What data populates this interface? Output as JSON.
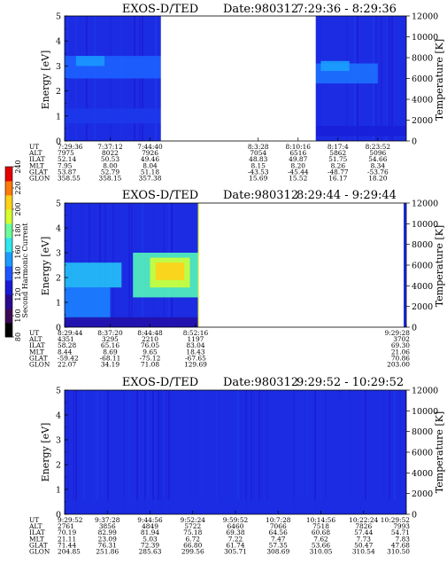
{
  "colorbar": {
    "label": "Second Harmonic Current",
    "ticks": [
      "80",
      "100",
      "120",
      "140",
      "160",
      "180",
      "200",
      "220",
      "240"
    ],
    "colors": [
      "#000000",
      "#3c0a55",
      "#2a0a8e",
      "#1a1ad6",
      "#1f55ff",
      "#1a9cff",
      "#2fe6ee",
      "#6bff9a",
      "#d6ff2e",
      "#ffd21a",
      "#ff7a0a",
      "#e60000"
    ]
  },
  "chart_data": [
    {
      "type": "heatmap",
      "title": "EXOS-D/TED",
      "date_label": "Date:980312",
      "time_range": "7:29:36 - 8:29:36",
      "ylabel": "Energy [eV]",
      "y2label": "Temperature [K]",
      "ylim": [
        0,
        5
      ],
      "y2lim": [
        0,
        12000
      ],
      "yticks": [
        "0",
        "1",
        "2",
        "3",
        "4",
        "5"
      ],
      "y2ticks": [
        "0",
        "2000",
        "4000",
        "6000",
        "8000",
        "10000",
        "12000"
      ],
      "xlim_min": [
        0,
        60
      ],
      "data_gap_min": [
        16.9,
        44.1
      ],
      "bands": [
        {
          "x": [
            0,
            16.9
          ],
          "y": [
            2.5,
            3.4
          ],
          "level": 0.38
        },
        {
          "x": [
            2,
            7
          ],
          "y": [
            3.0,
            3.4
          ],
          "level": 0.45
        },
        {
          "x": [
            0,
            16.9
          ],
          "y": [
            0.7,
            1.3
          ],
          "level": 0.32
        },
        {
          "x": [
            44.1,
            55
          ],
          "y": [
            2.3,
            3.1
          ],
          "level": 0.4
        },
        {
          "x": [
            45,
            50
          ],
          "y": [
            2.8,
            3.2
          ],
          "level": 0.46
        },
        {
          "x": [
            44.1,
            60
          ],
          "y": [
            0.2,
            0.6
          ],
          "level": 0.28
        }
      ],
      "table": {
        "row_labels": [
          "UT",
          "ALT",
          "ILAT",
          "MLT",
          "GLAT",
          "GLON"
        ],
        "columns": [
          {
            "t": 0,
            "values": [
              "7:29:36",
              "7975",
              "52.14",
              "7.95",
              "53.87",
              "358.55"
            ]
          },
          {
            "t": 8,
            "values": [
              "7:37:12",
              "8022",
              "50.53",
              "8.00",
              "52.79",
              "358.15"
            ]
          },
          {
            "t": 15,
            "values": [
              "7:44:40",
              "7926",
              "49.46",
              "8.04",
              "51.18",
              "357.38"
            ]
          },
          {
            "t": 34,
            "values": [
              "8:3:28",
              "7054",
              "48.83",
              "8.15",
              "-43.53",
              "15.69"
            ]
          },
          {
            "t": 41,
            "values": [
              "8:10:16",
              "6516",
              "49.87",
              "8.20",
              "-45.44",
              "15.52"
            ]
          },
          {
            "t": 48,
            "values": [
              "8:17:4",
              "5862",
              "51.75",
              "8.26",
              "-48.77",
              "16.17"
            ]
          },
          {
            "t": 55,
            "values": [
              "8:23:52",
              "5096",
              "54.66",
              "8.34",
              "-53.76",
              "18.20"
            ]
          }
        ]
      }
    },
    {
      "type": "heatmap",
      "title": "EXOS-D/TED",
      "date_label": "Date:980312",
      "time_range": "8:29:44 - 9:29:44",
      "ylabel": "Energy [eV]",
      "y2label": "Temperature [K]",
      "ylim": [
        0,
        5
      ],
      "y2lim": [
        0,
        12000
      ],
      "yticks": [
        "0",
        "1",
        "2",
        "3",
        "4",
        "5"
      ],
      "y2ticks": [
        "0",
        "2000",
        "4000",
        "6000",
        "8000",
        "10000",
        "12000"
      ],
      "xlim_min": [
        0,
        60
      ],
      "data_end_min": 23.5,
      "bands": [
        {
          "x": [
            0,
            8
          ],
          "y": [
            0.3,
            1.6
          ],
          "level": 0.42
        },
        {
          "x": [
            0,
            10
          ],
          "y": [
            1.6,
            2.6
          ],
          "level": 0.5
        },
        {
          "x": [
            12,
            23.5
          ],
          "y": [
            1.2,
            3.0
          ],
          "level": 0.6
        },
        {
          "x": [
            15,
            22
          ],
          "y": [
            1.6,
            2.8
          ],
          "level": 0.72
        },
        {
          "x": [
            16,
            21
          ],
          "y": [
            1.9,
            2.6
          ],
          "level": 0.82
        },
        {
          "x": [
            0,
            23.5
          ],
          "y": [
            0,
            0.4
          ],
          "level": 0.22
        }
      ],
      "table": {
        "row_labels": [
          "UT",
          "ALT",
          "ILAT",
          "MLT",
          "GLAT",
          "GLON"
        ],
        "columns": [
          {
            "t": 0,
            "values": [
              "8:29:44",
              "4351",
              "58.28",
              "8.44",
              "-59.42",
              "22.07"
            ]
          },
          {
            "t": 8,
            "values": [
              "8:37:20",
              "3295",
              "65.16",
              "8.69",
              "-68.11",
              "34.19"
            ]
          },
          {
            "t": 15,
            "values": [
              "8:44:48",
              "2210",
              "76.05",
              "9.65",
              "-75.12",
              "71.08"
            ]
          },
          {
            "t": 23,
            "values": [
              "8:52:16",
              "1197",
              "83.04",
              "18.43",
              "-67.65",
              "129.69"
            ]
          },
          {
            "t": 60,
            "values": [
              "9:29:28",
              "3702",
              "69.30",
              "21.06",
              "70.86",
              "203.00"
            ]
          }
        ]
      }
    },
    {
      "type": "heatmap",
      "title": "EXOS-D/TED",
      "date_label": "Date:980312",
      "time_range": "9:29:52 - 10:29:52",
      "ylabel": "Energy [eV]",
      "y2label": "Temperature [K]",
      "ylim": [
        0,
        5
      ],
      "y2lim": [
        0,
        12000
      ],
      "yticks": [
        "0",
        "1",
        "2",
        "3",
        "4",
        "5"
      ],
      "y2ticks": [
        "0",
        "2000",
        "4000",
        "6000",
        "8000",
        "10000",
        "12000"
      ],
      "xlim_min": [
        0,
        60
      ],
      "bands": [
        {
          "x": [
            0,
            60
          ],
          "y": [
            0,
            0.6
          ],
          "level": 0.3
        },
        {
          "x": [
            20,
            24
          ],
          "y": [
            0,
            4.9
          ],
          "level": 0.3
        },
        {
          "x": [
            48,
            52
          ],
          "y": [
            0,
            4.9
          ],
          "level": 0.3
        }
      ],
      "table": {
        "row_labels": [
          "UT",
          "ALT",
          "ILAT",
          "MLT",
          "GLAT",
          "GLON"
        ],
        "columns": [
          {
            "t": 0,
            "values": [
              "9:29:52",
              "2761",
              "70.19",
              "21.11",
              "71.44",
              "204.85"
            ]
          },
          {
            "t": 7.5,
            "values": [
              "9:37:28",
              "3856",
              "82.99",
              "23.09",
              "76.31",
              "251.86"
            ]
          },
          {
            "t": 15,
            "values": [
              "9:44:56",
              "4849",
              "81.94",
              "5.03",
              "72.39",
              "285.63"
            ]
          },
          {
            "t": 22.5,
            "values": [
              "9:52:24",
              "5722",
              "75.18",
              "6.72",
              "66.80",
              "299.56"
            ]
          },
          {
            "t": 30,
            "values": [
              "9:59:52",
              "6460",
              "69.38",
              "7.22",
              "61.74",
              "305.71"
            ]
          },
          {
            "t": 37.5,
            "values": [
              "10:7:28",
              "7066",
              "64.56",
              "7.47",
              "57.35",
              "308.69"
            ]
          },
          {
            "t": 45,
            "values": [
              "10:14:56",
              "7518",
              "60.68",
              "7.62",
              "53.66",
              "310.05"
            ]
          },
          {
            "t": 52.5,
            "values": [
              "10:22:24",
              "7826",
              "57.44",
              "7.73",
              "50.47",
              "310.54"
            ]
          },
          {
            "t": 60,
            "values": [
              "10:29:52",
              "7993",
              "54.71",
              "7.83",
              "47.68",
              "310.50"
            ]
          }
        ]
      }
    }
  ]
}
